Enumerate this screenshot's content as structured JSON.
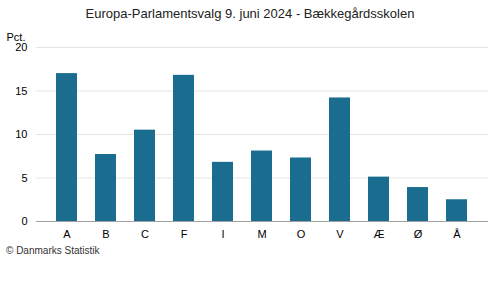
{
  "chart_data": {
    "type": "bar",
    "title": "Europa-Parlamentsvalg 9. juni 2024 - Bækkegårdsskolen",
    "categories": [
      "A",
      "B",
      "C",
      "F",
      "I",
      "M",
      "O",
      "V",
      "Æ",
      "Ø",
      "Å"
    ],
    "values": [
      17.0,
      7.7,
      10.5,
      16.8,
      6.8,
      8.1,
      7.3,
      14.2,
      5.1,
      3.9,
      2.5
    ],
    "color": "#1a6d8e",
    "ylabel": "Pct.",
    "ylim": [
      0,
      20
    ],
    "yticks": [
      0,
      5,
      10,
      15,
      20
    ],
    "grid": true,
    "annotations": [
      "© Danmarks Statistik"
    ]
  }
}
